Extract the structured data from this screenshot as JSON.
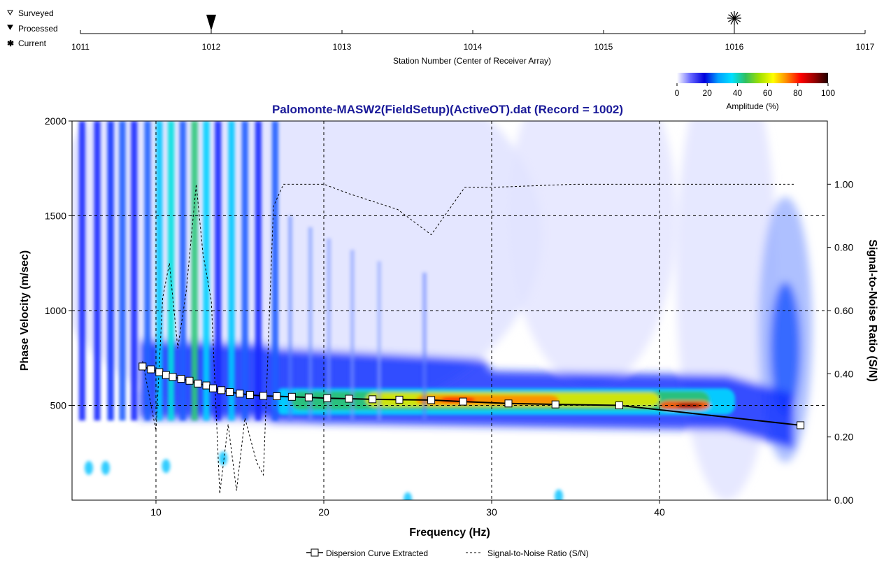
{
  "chart_data": [
    {
      "type": "scatter",
      "xlabel": "Station Number (Center of Receiver Array)",
      "xlim": [
        1011,
        1017
      ],
      "x_ticks": [
        "1011",
        "1012",
        "1013",
        "1014",
        "1015",
        "1016",
        "1017"
      ],
      "legend": {
        "surveyed": "Surveyed",
        "processed": "Processed",
        "current": "Current"
      },
      "markers": [
        {
          "station": 1012,
          "kind": "processed"
        },
        {
          "station": 1016,
          "kind": "current"
        }
      ]
    },
    {
      "type": "heatmap",
      "title": "Palomonte-MASW2(FieldSetup)(ActiveOT).dat (Record = 1002)",
      "xlabel": "Frequency (Hz)",
      "ylabel": "Phase Velocity (m/sec)",
      "y2label": "Signal-to-Noise Ratio (S/N)",
      "xlim": [
        5,
        50
      ],
      "ylim": [
        0,
        2000
      ],
      "y2lim": [
        0,
        1.2
      ],
      "x_ticks": [
        "10",
        "20",
        "30",
        "40"
      ],
      "y_ticks": [
        "500",
        "1000",
        "1500",
        "2000"
      ],
      "y2_ticks": [
        "0.00",
        "0.20",
        "0.40",
        "0.60",
        "0.80",
        "1.00"
      ],
      "grid": true,
      "colorbar": {
        "label": "Amplitude (%)",
        "ticks": [
          "0",
          "20",
          "40",
          "60",
          "80",
          "100"
        ],
        "colors": [
          "#ffffff",
          "#6666ff",
          "#0000dd",
          "#00a0ff",
          "#00e0ff",
          "#30c060",
          "#a0e000",
          "#ffff00",
          "#ff8800",
          "#ff0000",
          "#990000",
          "#200000"
        ]
      },
      "legend_placement": "bottom",
      "series": [
        {
          "name": "Dispersion Curve Extracted",
          "x": [
            9.2,
            9.7,
            10.2,
            10.6,
            11.0,
            11.5,
            12.0,
            12.5,
            13.0,
            13.4,
            13.9,
            14.4,
            15.0,
            15.6,
            16.4,
            17.2,
            18.1,
            19.1,
            20.2,
            21.5,
            22.9,
            24.5,
            26.4,
            28.3,
            31.0,
            33.8,
            37.6,
            48.4
          ],
          "y": [
            705,
            690,
            675,
            660,
            650,
            640,
            630,
            615,
            605,
            590,
            580,
            570,
            562,
            555,
            550,
            548,
            545,
            542,
            538,
            535,
            532,
            530,
            528,
            520,
            510,
            505,
            500,
            395
          ]
        },
        {
          "name": "Signal-to-Noise Ratio (S/N)",
          "axis": "y2",
          "x": [
            9.2,
            10.0,
            10.4,
            10.8,
            11.3,
            11.8,
            12.4,
            12.8,
            13.3,
            13.8,
            14.3,
            14.8,
            15.3,
            16.0,
            16.4,
            17.0,
            17.6,
            18.4,
            20.0,
            21.5,
            24.4,
            26.4,
            28.4,
            30.0,
            35.0,
            40.0,
            48.0
          ],
          "y": [
            0.44,
            0.22,
            0.64,
            0.75,
            0.48,
            0.66,
            1.0,
            0.78,
            0.63,
            0.02,
            0.24,
            0.03,
            0.26,
            0.12,
            0.08,
            0.93,
            1.0,
            1.0,
            1.0,
            0.97,
            0.92,
            0.84,
            0.99,
            0.99,
            1.0,
            1.0,
            1.0
          ]
        }
      ]
    }
  ]
}
